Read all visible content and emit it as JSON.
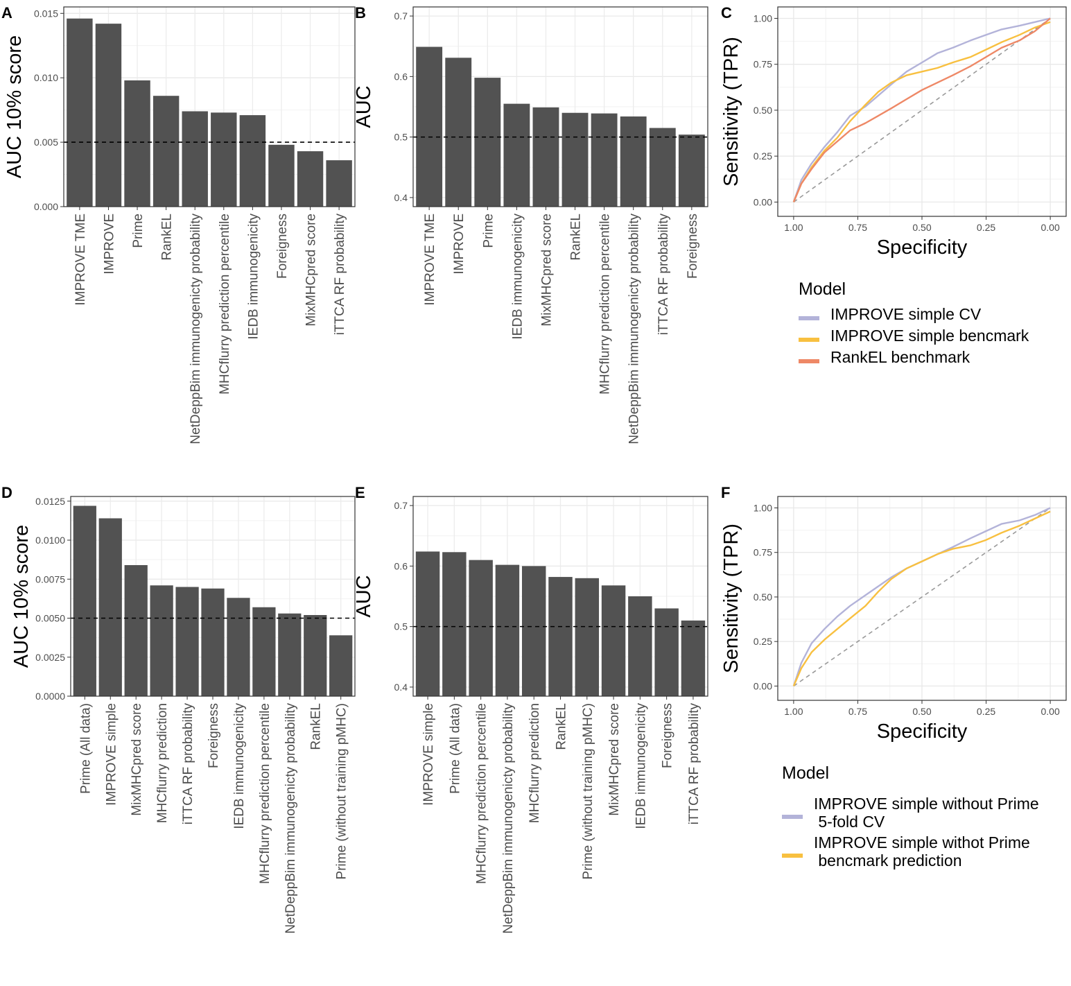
{
  "chart_data": [
    {
      "panel": "A",
      "type": "bar",
      "ylabel": "AUC 10% score",
      "xlabel": "",
      "ylim": [
        0,
        0.0155
      ],
      "yticks": [
        0,
        0.005,
        0.01,
        0.015
      ],
      "ytick_labels": [
        "0.000",
        "0.005",
        "0.010",
        "0.015"
      ],
      "reference_line": 0.005,
      "categories": [
        "IMPROVE TME",
        "IMPROVE",
        "Prime",
        "RankEL",
        "NetDeppBim immunogenicty probability",
        "MHCflurry prediction percentile",
        "IEDB immunogenicity",
        "Foreigness",
        "MixMHCpred score",
        "iTTCA RF probability"
      ],
      "values": [
        0.0146,
        0.0142,
        0.0098,
        0.0086,
        0.0074,
        0.0073,
        0.0071,
        0.0048,
        0.0043,
        0.0036
      ]
    },
    {
      "panel": "B",
      "type": "bar",
      "ylabel": "AUC",
      "xlabel": "",
      "ylim": [
        0.385,
        0.715
      ],
      "yticks": [
        0.4,
        0.5,
        0.6,
        0.7
      ],
      "ytick_labels": [
        "0.4",
        "0.5",
        "0.6",
        "0.7"
      ],
      "reference_line": 0.5,
      "categories": [
        "IMPROVE TME",
        "IMPROVE",
        "Prime",
        "IEDB immunogenicity",
        "MixMHCpred score",
        "RankEL",
        "MHCflurry prediction percentile",
        "NetDeppBim immunogenicty probability",
        "iTTCA RF probability",
        "Foreigness"
      ],
      "values": [
        0.649,
        0.631,
        0.598,
        0.555,
        0.549,
        0.54,
        0.539,
        0.534,
        0.515,
        0.504
      ]
    },
    {
      "panel": "C",
      "type": "line",
      "xlabel": "Specificity",
      "ylabel": "Sensitivity (TPR)",
      "x_reversed": true,
      "xlim": [
        1.0,
        0.0
      ],
      "ylim": [
        0.0,
        1.0
      ],
      "xticks": [
        1.0,
        0.75,
        0.5,
        0.25,
        0.0
      ],
      "xtick_labels": [
        "1.00",
        "0.75",
        "0.50",
        "0.25",
        "0.00"
      ],
      "yticks": [
        0,
        0.25,
        0.5,
        0.75,
        1.0
      ],
      "ytick_labels": [
        "0.00",
        "0.25",
        "0.50",
        "0.75",
        "1.00"
      ],
      "reference_diagonal": true,
      "legend_title": "Model",
      "legend_position": "bottom",
      "series": [
        {
          "name": "IMPROVE simple CV",
          "color": "#b3b3d9",
          "x": [
            1.0,
            0.97,
            0.93,
            0.88,
            0.83,
            0.78,
            0.72,
            0.67,
            0.62,
            0.56,
            0.5,
            0.44,
            0.38,
            0.31,
            0.25,
            0.19,
            0.12,
            0.06,
            0.0
          ],
          "y": [
            0.0,
            0.12,
            0.21,
            0.3,
            0.38,
            0.47,
            0.52,
            0.58,
            0.64,
            0.71,
            0.76,
            0.81,
            0.84,
            0.88,
            0.91,
            0.94,
            0.96,
            0.98,
            1.0
          ]
        },
        {
          "name": "IMPROVE simple bencmark",
          "color": "#f8c040",
          "x": [
            1.0,
            0.97,
            0.93,
            0.88,
            0.83,
            0.78,
            0.72,
            0.67,
            0.62,
            0.56,
            0.5,
            0.44,
            0.38,
            0.31,
            0.25,
            0.19,
            0.12,
            0.06,
            0.0
          ],
          "y": [
            0.0,
            0.1,
            0.19,
            0.28,
            0.35,
            0.44,
            0.53,
            0.6,
            0.65,
            0.69,
            0.71,
            0.73,
            0.76,
            0.79,
            0.83,
            0.87,
            0.91,
            0.95,
            0.98
          ]
        },
        {
          "name": "RankEL benchmark",
          "color": "#ee8866",
          "x": [
            1.0,
            0.97,
            0.93,
            0.88,
            0.83,
            0.78,
            0.72,
            0.67,
            0.62,
            0.56,
            0.5,
            0.44,
            0.38,
            0.31,
            0.25,
            0.19,
            0.12,
            0.06,
            0.0
          ],
          "y": [
            0.0,
            0.1,
            0.18,
            0.27,
            0.33,
            0.39,
            0.43,
            0.47,
            0.51,
            0.56,
            0.61,
            0.65,
            0.69,
            0.74,
            0.79,
            0.84,
            0.88,
            0.93,
            1.0
          ]
        }
      ]
    },
    {
      "panel": "D",
      "type": "bar",
      "ylabel": "AUC 10% score",
      "xlabel": "",
      "ylim": [
        0,
        0.0128
      ],
      "yticks": [
        0,
        0.0025,
        0.005,
        0.0075,
        0.01,
        0.0125
      ],
      "ytick_labels": [
        "0.0000",
        "0.0025",
        "0.0050",
        "0.0075",
        "0.0100",
        "0.0125"
      ],
      "reference_line": 0.005,
      "categories": [
        "Prime (All data)",
        "IMPROVE simple",
        "MixMHCpred score",
        "MHCflurry prediction",
        "iTTCA RF probability",
        "Foreigness",
        "IEDB immunogenicity",
        "MHCflurry prediction percentile",
        "NetDeppBim immunogenicty probability",
        "RankEL",
        "Prime (without training pMHC)"
      ],
      "values": [
        0.0122,
        0.0114,
        0.0084,
        0.0071,
        0.007,
        0.0069,
        0.0063,
        0.0057,
        0.0053,
        0.0052,
        0.0039
      ]
    },
    {
      "panel": "E",
      "type": "bar",
      "ylabel": "AUC",
      "xlabel": "",
      "ylim": [
        0.385,
        0.715
      ],
      "yticks": [
        0.4,
        0.5,
        0.6,
        0.7
      ],
      "ytick_labels": [
        "0.4",
        "0.5",
        "0.6",
        "0.7"
      ],
      "reference_line": 0.5,
      "categories": [
        "IMPROVE simple",
        "Prime (All data)",
        "MHCflurry prediction percentile",
        "NetDeppBim immunogenicty probability",
        "MHCflurry prediction",
        "RankEL",
        "Prime (without training pMHC)",
        "MixMHCpred score",
        "IEDB immunogenicity",
        "Foreigness",
        "iTTCA RF probability"
      ],
      "values": [
        0.624,
        0.623,
        0.61,
        0.602,
        0.6,
        0.582,
        0.58,
        0.568,
        0.55,
        0.53,
        0.51
      ]
    },
    {
      "panel": "F",
      "type": "line",
      "xlabel": "Specificity",
      "ylabel": "Sensitivity (TPR)",
      "x_reversed": true,
      "xlim": [
        1.0,
        0.0
      ],
      "ylim": [
        0.0,
        1.0
      ],
      "xticks": [
        1.0,
        0.75,
        0.5,
        0.25,
        0.0
      ],
      "xtick_labels": [
        "1.00",
        "0.75",
        "0.50",
        "0.25",
        "0.00"
      ],
      "yticks": [
        0,
        0.25,
        0.5,
        0.75,
        1.0
      ],
      "ytick_labels": [
        "0.00",
        "0.25",
        "0.50",
        "0.75",
        "1.00"
      ],
      "reference_diagonal": true,
      "legend_title": "Model",
      "legend_position": "bottom",
      "series": [
        {
          "name": "IMPROVE simple without Prime\n 5-fold CV",
          "color": "#b3b3d9",
          "x": [
            1.0,
            0.97,
            0.93,
            0.88,
            0.83,
            0.78,
            0.72,
            0.67,
            0.62,
            0.56,
            0.5,
            0.44,
            0.38,
            0.31,
            0.25,
            0.19,
            0.12,
            0.06,
            0.0
          ],
          "y": [
            0.0,
            0.13,
            0.24,
            0.32,
            0.39,
            0.45,
            0.51,
            0.56,
            0.61,
            0.66,
            0.7,
            0.74,
            0.78,
            0.83,
            0.87,
            0.91,
            0.93,
            0.96,
            1.0
          ]
        },
        {
          "name": "IMPROVE simple withot Prime\n bencmark prediction",
          "color": "#f8c040",
          "x": [
            1.0,
            0.97,
            0.93,
            0.88,
            0.83,
            0.78,
            0.72,
            0.67,
            0.62,
            0.56,
            0.5,
            0.44,
            0.38,
            0.31,
            0.25,
            0.19,
            0.12,
            0.06,
            0.0
          ],
          "y": [
            0.0,
            0.1,
            0.19,
            0.26,
            0.32,
            0.38,
            0.45,
            0.53,
            0.6,
            0.66,
            0.7,
            0.74,
            0.77,
            0.79,
            0.82,
            0.86,
            0.9,
            0.94,
            0.98
          ]
        }
      ]
    }
  ]
}
